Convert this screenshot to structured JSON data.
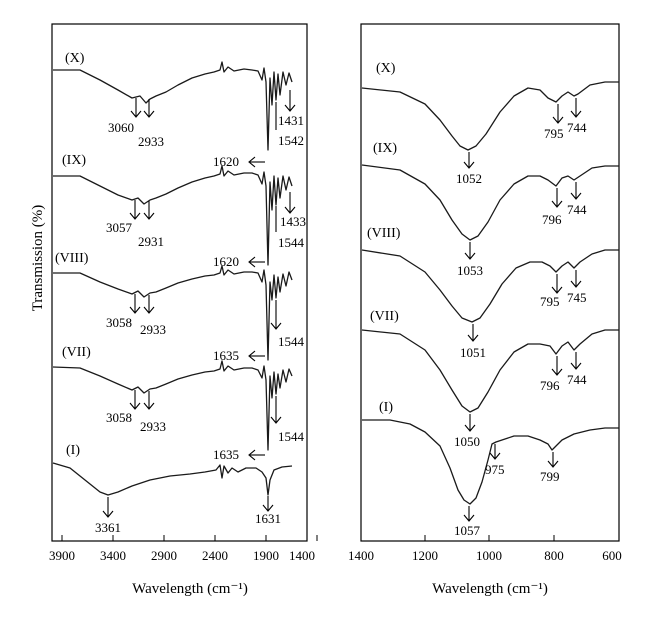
{
  "figure": {
    "ylabel": "Transmission (%)"
  },
  "chart_data": [
    {
      "type": "line",
      "xlabel": "Wavelength (cm⁻¹)",
      "ylabel": "Transmission (%)",
      "xlim": [
        3900,
        1300
      ],
      "x_reversed": true,
      "xticks": [
        "3900",
        "3400",
        "2900",
        "2400",
        "1900",
        "1400"
      ],
      "series": [
        {
          "name": "(X)",
          "annotations": [
            {
              "text": "3060",
              "x": 3060
            },
            {
              "text": "2933",
              "x": 2933
            },
            {
              "text": "1542",
              "x": 1542
            },
            {
              "text": "1431",
              "x": 1431
            }
          ]
        },
        {
          "name": "(IX)",
          "annotations": [
            {
              "text": "1620",
              "x": 1620
            },
            {
              "text": "3057",
              "x": 3057
            },
            {
              "text": "2931",
              "x": 2931
            },
            {
              "text": "1544",
              "x": 1544
            },
            {
              "text": "1433",
              "x": 1433
            }
          ]
        },
        {
          "name": "(VIII)",
          "annotations": [
            {
              "text": "1620",
              "x": 1620
            },
            {
              "text": "3058",
              "x": 3058
            },
            {
              "text": "2933",
              "x": 2933
            },
            {
              "text": "1544",
              "x": 1544
            }
          ]
        },
        {
          "name": "(VII)",
          "annotations": [
            {
              "text": "1635",
              "x": 1635
            },
            {
              "text": "3058",
              "x": 3058
            },
            {
              "text": "2933",
              "x": 2933
            },
            {
              "text": "1544",
              "x": 1544
            }
          ]
        },
        {
          "name": "(I)",
          "annotations": [
            {
              "text": "1635",
              "x": 1635
            },
            {
              "text": "3361",
              "x": 3361
            },
            {
              "text": "1631",
              "x": 1631
            }
          ]
        }
      ]
    },
    {
      "type": "line",
      "xlabel": "Wavelength (cm⁻¹)",
      "xlim": [
        1400,
        600
      ],
      "x_reversed": true,
      "xticks": [
        "1400",
        "1200",
        "1000",
        "800",
        "600"
      ],
      "series": [
        {
          "name": "(X)",
          "annotations": [
            {
              "text": "1052",
              "x": 1052
            },
            {
              "text": "795",
              "x": 795
            },
            {
              "text": "744",
              "x": 744
            }
          ]
        },
        {
          "name": "(IX)",
          "annotations": [
            {
              "text": "1053",
              "x": 1053
            },
            {
              "text": "796",
              "x": 796
            },
            {
              "text": "744",
              "x": 744
            }
          ]
        },
        {
          "name": "(VIII)",
          "annotations": [
            {
              "text": "1051",
              "x": 1051
            },
            {
              "text": "795",
              "x": 795
            },
            {
              "text": "745",
              "x": 745
            }
          ]
        },
        {
          "name": "(VII)",
          "annotations": [
            {
              "text": "1050",
              "x": 1050
            },
            {
              "text": "796",
              "x": 796
            },
            {
              "text": "744",
              "x": 744
            }
          ]
        },
        {
          "name": "(I)",
          "annotations": [
            {
              "text": "1057",
              "x": 1057
            },
            {
              "text": "975",
              "x": 975
            },
            {
              "text": "799",
              "x": 799
            }
          ]
        }
      ]
    }
  ]
}
